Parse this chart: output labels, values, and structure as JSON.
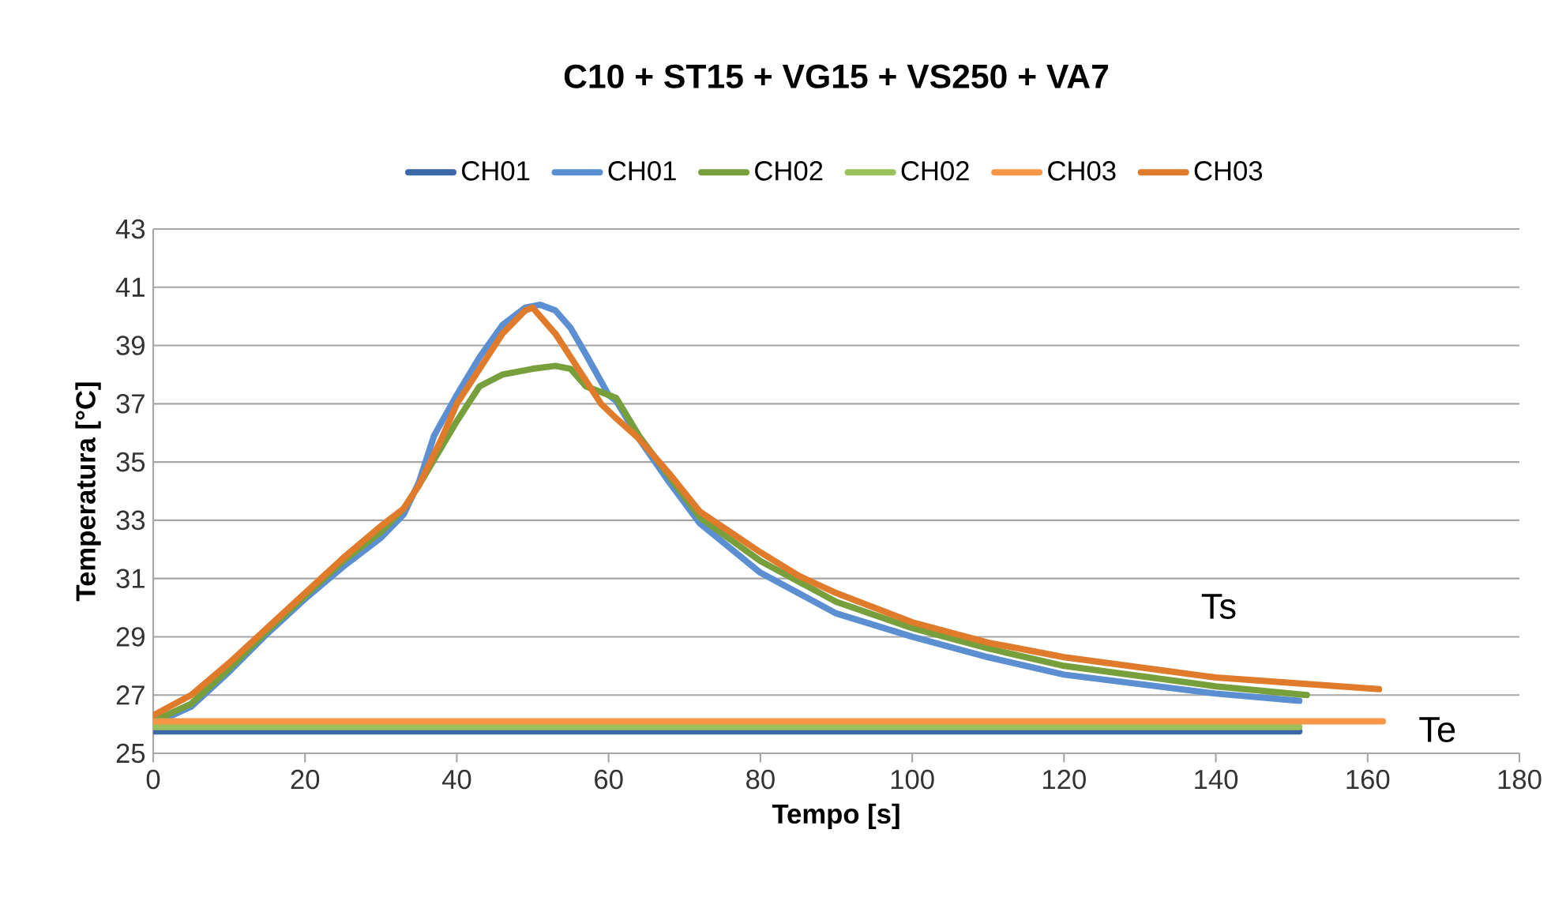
{
  "chart_data": {
    "type": "line",
    "title": "C10 + ST15 + VG15 + VS250 + VA7",
    "xlabel": "Tempo [s]",
    "ylabel": "Temperatura [°C]",
    "xlim": [
      0,
      180
    ],
    "xticks": [
      0,
      20,
      40,
      60,
      80,
      100,
      120,
      140,
      160,
      180
    ],
    "ylim": [
      25,
      43
    ],
    "yticks": [
      25,
      27,
      29,
      31,
      33,
      35,
      37,
      39,
      41,
      43
    ],
    "grid": "y",
    "legend": "top",
    "marker": "none",
    "line_style": "solid",
    "annotations": [
      "Ts",
      "Te"
    ],
    "series": [
      {
        "name": "CH01",
        "color": "#3b69a8",
        "x": [
          0,
          75,
          151
        ],
        "values": [
          25.75,
          25.75,
          25.75
        ]
      },
      {
        "name": "CH01",
        "color": "#5b8fd2",
        "x": [
          0,
          5,
          10,
          15,
          20,
          25,
          30,
          33,
          35,
          37,
          40,
          43,
          46,
          49,
          51,
          53,
          55,
          57,
          60,
          61,
          64,
          68,
          72,
          80,
          90,
          100,
          110,
          120,
          140,
          151
        ],
        "values": [
          26.0,
          26.6,
          27.8,
          29.1,
          30.3,
          31.4,
          32.4,
          33.2,
          34.3,
          35.9,
          37.3,
          38.6,
          39.7,
          40.3,
          40.4,
          40.2,
          39.6,
          38.7,
          37.3,
          37.1,
          35.8,
          34.3,
          32.9,
          31.2,
          29.8,
          29.0,
          28.3,
          27.7,
          27.05,
          26.8
        ]
      },
      {
        "name": "CH02",
        "color": "#77a03c",
        "x": [
          0,
          5,
          10,
          15,
          20,
          25,
          30,
          33,
          35,
          40,
          43,
          46,
          50,
          53,
          55,
          57,
          59,
          61,
          64,
          68,
          72,
          80,
          90,
          100,
          110,
          120,
          140,
          152
        ],
        "values": [
          26.1,
          26.7,
          27.9,
          29.2,
          30.4,
          31.6,
          32.6,
          33.4,
          34.2,
          36.4,
          37.6,
          38.0,
          38.2,
          38.3,
          38.2,
          37.6,
          37.4,
          37.2,
          35.9,
          34.5,
          33.1,
          31.6,
          30.2,
          29.3,
          28.6,
          28.0,
          27.3,
          27.0
        ]
      },
      {
        "name": "CH02",
        "color": "#9bc15a",
        "x": [
          0,
          75,
          151
        ],
        "values": [
          25.9,
          25.9,
          25.9
        ]
      },
      {
        "name": "CH03",
        "color": "#f79646",
        "x": [
          0,
          80,
          162
        ],
        "values": [
          26.1,
          26.1,
          26.1
        ]
      },
      {
        "name": "CH03",
        "color": "#e07b2c",
        "x": [
          0,
          5,
          10,
          15,
          20,
          25,
          30,
          33,
          35,
          38,
          40,
          43,
          46,
          49,
          50,
          53,
          56,
          59,
          61,
          64,
          68,
          72,
          76,
          80,
          85,
          90,
          95,
          100,
          110,
          120,
          140,
          161.5
        ],
        "values": [
          26.3,
          27.0,
          28.1,
          29.3,
          30.5,
          31.7,
          32.8,
          33.4,
          34.2,
          35.8,
          37.0,
          38.2,
          39.4,
          40.2,
          40.3,
          39.4,
          38.2,
          37.0,
          36.5,
          35.8,
          34.6,
          33.3,
          32.6,
          31.9,
          31.1,
          30.5,
          30.0,
          29.5,
          28.8,
          28.3,
          27.6,
          27.2
        ]
      }
    ]
  }
}
